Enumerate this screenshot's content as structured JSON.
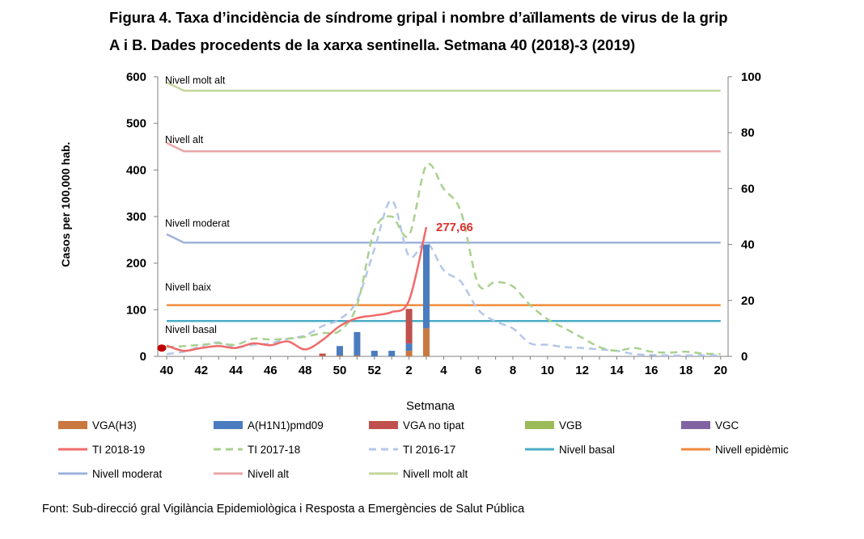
{
  "title_line1": "Figura 4. Taxa d’incidència de síndrome gripal i nombre d’aïllaments de virus de la grip",
  "title_line2": "A i B. Dades procedents de la xarxa sentinella.  Setmana 40 (2018)-3 (2019)",
  "source": "Font:  Sub-direcció gral Vigilància  Epidemiològica  i Resposta a Emergències de Salut Pública",
  "chart_data": {
    "type": "bar",
    "xlabel": "Setmana",
    "ylabel": "Casos per 100,000 hab.",
    "ylim": [
      0,
      600
    ],
    "yticks": [
      0,
      100,
      200,
      300,
      400,
      500,
      600
    ],
    "y2lim": [
      0,
      100
    ],
    "y2ticks": [
      0,
      20,
      40,
      60,
      80,
      100
    ],
    "xtick_labels": [
      "40",
      "42",
      "44",
      "46",
      "48",
      "50",
      "52",
      "2",
      "4",
      "6",
      "8",
      "10",
      "12",
      "14",
      "16",
      "18",
      "20"
    ],
    "weeks": [
      "40",
      "41",
      "42",
      "43",
      "44",
      "45",
      "46",
      "47",
      "48",
      "49",
      "50",
      "51",
      "52",
      "1",
      "2",
      "3",
      "4",
      "5",
      "6",
      "7",
      "8",
      "9",
      "10",
      "11",
      "12",
      "13",
      "14",
      "15",
      "16",
      "17",
      "18",
      "19",
      "20"
    ],
    "grid": false,
    "legend_position": "bottom",
    "bar_axis": "right",
    "bars": [
      {
        "name": "VGA(H3)",
        "color": "#c9783f",
        "values": [
          0,
          0,
          0,
          0,
          0,
          0,
          0,
          0,
          0,
          0.2,
          0.3,
          0.3,
          0,
          0,
          2,
          10,
          0,
          0,
          0,
          0,
          0,
          0,
          0,
          0,
          0,
          0,
          0,
          0,
          0,
          0,
          0,
          0,
          0
        ]
      },
      {
        "name": "A(H1N1)pmd09",
        "color": "#4b7cc0",
        "values": [
          0,
          0,
          0,
          0,
          0,
          0,
          0,
          0,
          0,
          0,
          3.4,
          8.4,
          2,
          2,
          2.6,
          30,
          0,
          0,
          0,
          0,
          0,
          0,
          0,
          0,
          0,
          0,
          0,
          0,
          0,
          0,
          0,
          0,
          0
        ]
      },
      {
        "name": "VGA no tipat",
        "color": "#c0504d",
        "values": [
          0,
          0,
          0,
          0,
          0,
          0,
          0,
          0,
          0,
          0.8,
          0,
          0,
          0,
          0,
          12.4,
          0,
          0,
          0,
          0,
          0,
          0,
          0,
          0,
          0,
          0,
          0,
          0,
          0,
          0,
          0,
          0,
          0,
          0
        ]
      },
      {
        "name": "VGB",
        "color": "#9bbb59",
        "values": [
          0,
          0,
          0,
          0,
          0,
          0,
          0,
          0,
          0,
          0,
          0,
          0,
          0,
          0,
          0,
          0,
          0,
          0,
          0,
          0,
          0,
          0,
          0,
          0,
          0,
          0,
          0,
          0,
          0,
          0,
          0,
          0,
          0
        ]
      },
      {
        "name": "VGC",
        "color": "#8064a2",
        "values": [
          0,
          0,
          0,
          0,
          0,
          0,
          0,
          0,
          0,
          0,
          0,
          0,
          0,
          0,
          0,
          0,
          0,
          0,
          0,
          0,
          0,
          0,
          0,
          0,
          0,
          0,
          0,
          0,
          0,
          0,
          0,
          0,
          0
        ]
      }
    ],
    "lines": [
      {
        "name": "TI 2018-19",
        "color": "#f06a6a",
        "dash": "solid",
        "x": [
          "40",
          "41",
          "42",
          "43",
          "44",
          "45",
          "46",
          "47",
          "48",
          "49",
          "50",
          "51",
          "52",
          "1",
          "2",
          "3"
        ],
        "values": [
          23,
          12,
          18,
          22,
          18,
          28,
          24,
          32,
          15,
          35,
          65,
          82,
          88,
          95,
          120,
          277.66
        ]
      },
      {
        "name": "TI 2017-18",
        "color": "#a9d18e",
        "dash": "dashed",
        "x": [
          "40",
          "41",
          "42",
          "43",
          "44",
          "45",
          "46",
          "47",
          "48",
          "49",
          "50",
          "51",
          "52",
          "1",
          "2",
          "3",
          "4",
          "5",
          "6",
          "7",
          "8",
          "9",
          "10",
          "11",
          "12",
          "13",
          "14",
          "15",
          "16",
          "17",
          "18",
          "19",
          "20"
        ],
        "values": [
          20,
          22,
          25,
          28,
          25,
          38,
          36,
          38,
          42,
          50,
          55,
          110,
          270,
          300,
          260,
          410,
          360,
          310,
          155,
          160,
          150,
          110,
          80,
          60,
          40,
          20,
          12,
          18,
          10,
          8,
          10,
          6,
          5
        ]
      },
      {
        "name": "TI 2016-17",
        "color": "#b4c7e7",
        "dash": "dashed",
        "x": [
          "40",
          "41",
          "42",
          "43",
          "44",
          "45",
          "46",
          "47",
          "48",
          "49",
          "50",
          "51",
          "52",
          "1",
          "2",
          "3",
          "4",
          "5",
          "6",
          "7",
          "8",
          "9",
          "10",
          "11",
          "12",
          "13",
          "14",
          "15",
          "16",
          "17",
          "18",
          "19",
          "20"
        ],
        "values": [
          5,
          10,
          22,
          30,
          20,
          25,
          28,
          38,
          45,
          65,
          80,
          120,
          230,
          335,
          215,
          245,
          185,
          160,
          100,
          75,
          60,
          28,
          25,
          20,
          18,
          15,
          12,
          5,
          3,
          2,
          2,
          2,
          2
        ]
      },
      {
        "name": "Nivell basal",
        "color": "#4bacc6",
        "dash": "solid",
        "x": [
          "40",
          "20"
        ],
        "values": [
          76,
          76
        ]
      },
      {
        "name": "Nivell epidèmic",
        "color": "#f08a3c",
        "dash": "solid",
        "x": [
          "40",
          "20"
        ],
        "values": [
          110,
          110
        ]
      },
      {
        "name": "Nivell moderat",
        "color": "#9eb3dc",
        "dash": "solid",
        "x": [
          "40",
          "41",
          "20"
        ],
        "values": [
          262,
          244,
          244
        ]
      },
      {
        "name": "Nivell alt",
        "color": "#e8a6a6",
        "dash": "solid",
        "x": [
          "40",
          "41",
          "20"
        ],
        "values": [
          458,
          440,
          440
        ]
      },
      {
        "name": "Nivell molt alt",
        "color": "#c4d79b",
        "dash": "solid",
        "x": [
          "40",
          "41",
          "20"
        ],
        "values": [
          588,
          570,
          570
        ]
      }
    ],
    "level_labels": [
      {
        "text": "Nivell molt alt",
        "week": "40",
        "y": 592
      },
      {
        "text": "Nivell alt",
        "week": "40",
        "y": 465
      },
      {
        "text": "Nivell moderat",
        "week": "40",
        "y": 285
      },
      {
        "text": "Nivell baix",
        "week": "40",
        "y": 148
      },
      {
        "text": "Nivell basal",
        "week": "40",
        "y": 57
      }
    ],
    "annotation": {
      "text": "277,66",
      "week": "3",
      "y": 277.66,
      "color": "#e03030"
    },
    "start_marker": {
      "week": "40",
      "y": 23,
      "color": "#c00000"
    }
  }
}
